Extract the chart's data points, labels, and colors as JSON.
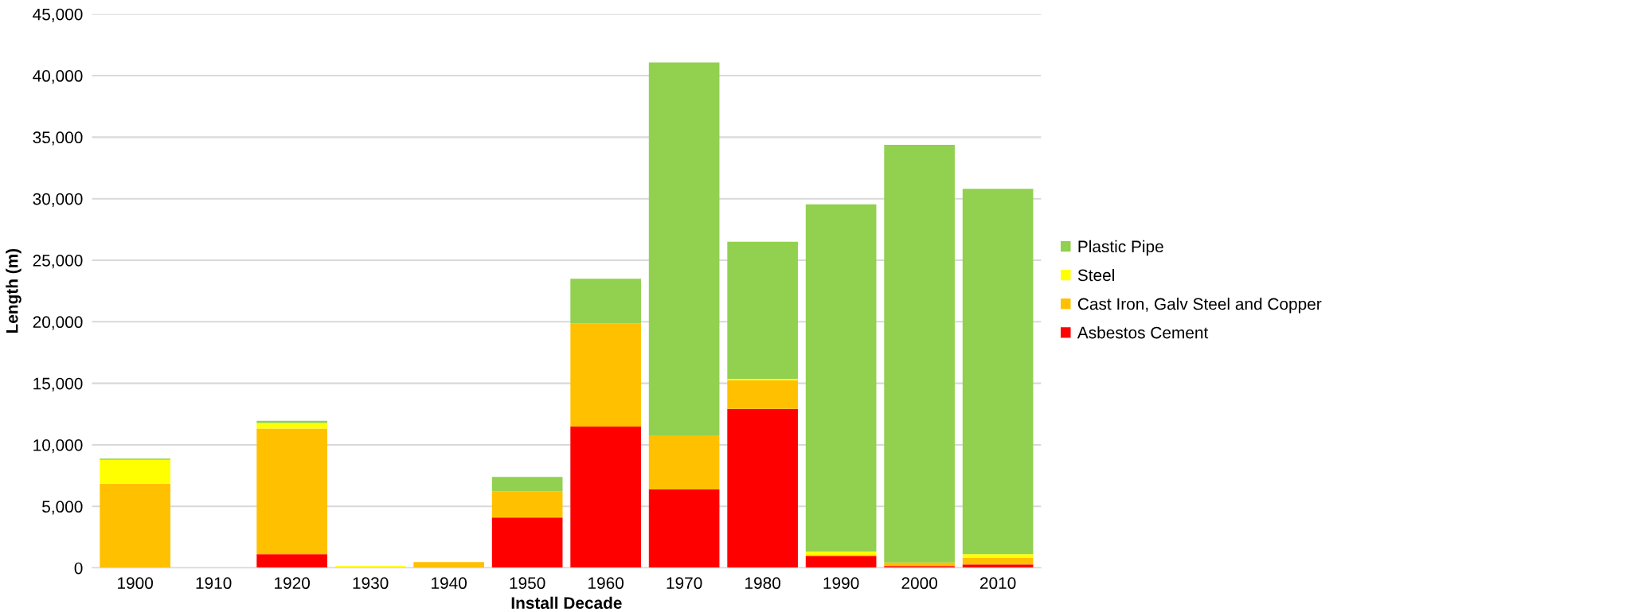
{
  "chart_data": {
    "type": "bar",
    "stacked": true,
    "xlabel": "Install Decade",
    "ylabel": "Length (m)",
    "categories": [
      "1900",
      "1910",
      "1920",
      "1930",
      "1940",
      "1950",
      "1960",
      "1970",
      "1980",
      "1990",
      "2000",
      "2010"
    ],
    "series": [
      {
        "name": "Asbestos Cement",
        "color": "#ff0000",
        "values": [
          0,
          0,
          1130,
          0,
          0,
          4100,
          11480,
          6370,
          12930,
          970,
          160,
          290
        ]
      },
      {
        "name": "Cast Iron, Galv Steel and Copper",
        "color": "#ffc000",
        "values": [
          6850,
          0,
          10190,
          0,
          480,
          2110,
          8400,
          4400,
          2330,
          100,
          290,
          550
        ]
      },
      {
        "name": "Steel",
        "color": "#ffff00",
        "values": [
          1940,
          0,
          450,
          150,
          0,
          0,
          0,
          0,
          100,
          260,
          0,
          290
        ]
      },
      {
        "name": "Plastic Pipe",
        "color": "#92d050",
        "values": [
          100,
          0,
          190,
          0,
          0,
          1190,
          3620,
          30290,
          11150,
          28220,
          33920,
          29680
        ]
      }
    ],
    "ylim": [
      0,
      45000
    ],
    "yticks": [
      {
        "value": 0,
        "label": "0"
      },
      {
        "value": 5000,
        "label": "5,000"
      },
      {
        "value": 10000,
        "label": "10,000"
      },
      {
        "value": 15000,
        "label": "15,000"
      },
      {
        "value": 20000,
        "label": "20,000"
      },
      {
        "value": 25000,
        "label": "25,000"
      },
      {
        "value": 30000,
        "label": "30,000"
      },
      {
        "value": 35000,
        "label": "35,000"
      },
      {
        "value": 40000,
        "label": "40,000"
      },
      {
        "value": 45000,
        "label": "45,000"
      }
    ],
    "grid": "y",
    "legend": "right"
  }
}
